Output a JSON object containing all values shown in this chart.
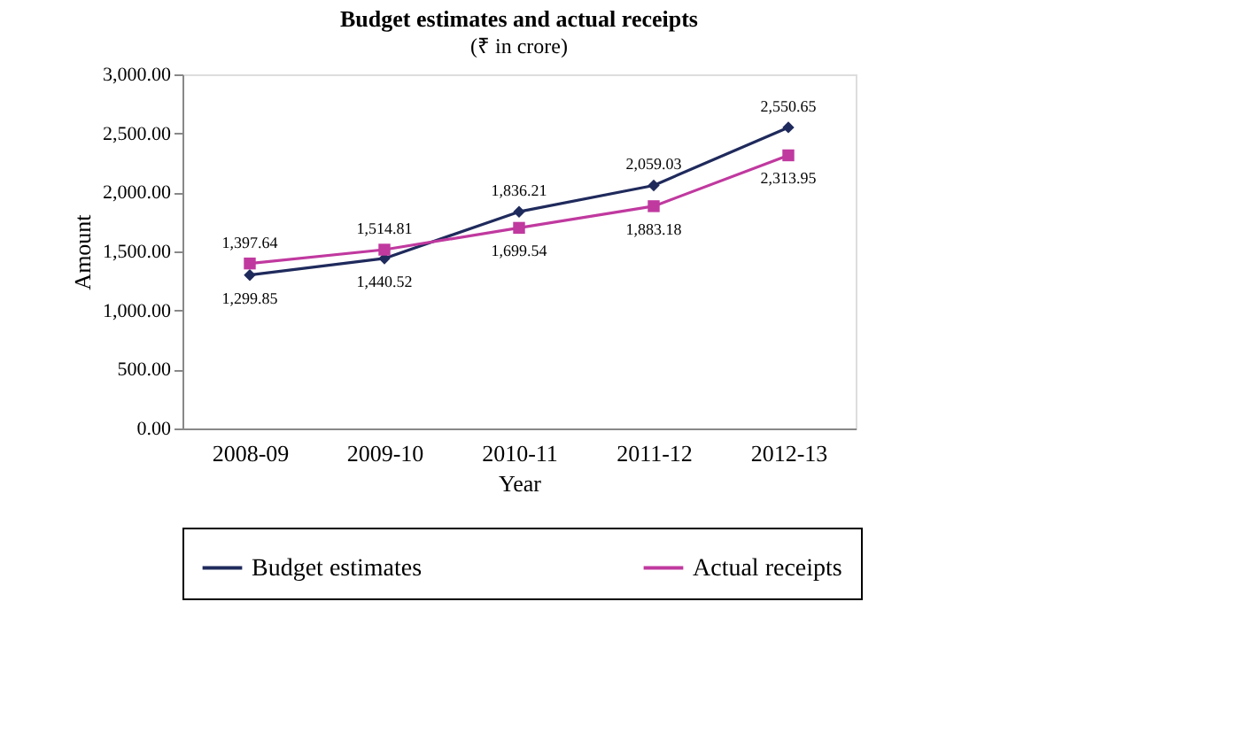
{
  "chart_data": {
    "type": "line",
    "title": "Budget estimates and actual receipts",
    "subtitle": "(₹ in crore)",
    "xlabel": "Year",
    "ylabel": "Amount",
    "categories": [
      "2008-09",
      "2009-10",
      "2010-11",
      "2011-12",
      "2012-13"
    ],
    "series": [
      {
        "name": "Budget estimates",
        "color": "#1f2a5c",
        "marker": "diamond",
        "values": [
          1299.85,
          1440.52,
          1836.21,
          2059.03,
          2550.65
        ],
        "value_labels": [
          "1,299.85",
          "1,440.52",
          "1,836.21",
          "2,059.03",
          "2,550.65"
        ]
      },
      {
        "name": "Actual receipts",
        "color": "#c0399f",
        "marker": "square",
        "values": [
          1397.64,
          1514.81,
          1699.54,
          1883.18,
          2313.95
        ],
        "value_labels": [
          "1,397.64",
          "1,514.81",
          "1,699.54",
          "1,883.18",
          "2,313.95"
        ]
      }
    ],
    "ylim": [
      0,
      3000
    ],
    "yticks": [
      {
        "value": 0,
        "label": "0.00"
      },
      {
        "value": 500,
        "label": "500.00"
      },
      {
        "value": 1000,
        "label": "1,000.00"
      },
      {
        "value": 1500,
        "label": "1,500.00"
      },
      {
        "value": 2000,
        "label": "2,000.00"
      },
      {
        "value": 2500,
        "label": "2,500.00"
      },
      {
        "value": 3000,
        "label": "3,000.00"
      }
    ],
    "grid": false,
    "legend": "bottom",
    "line_style": "solid"
  }
}
